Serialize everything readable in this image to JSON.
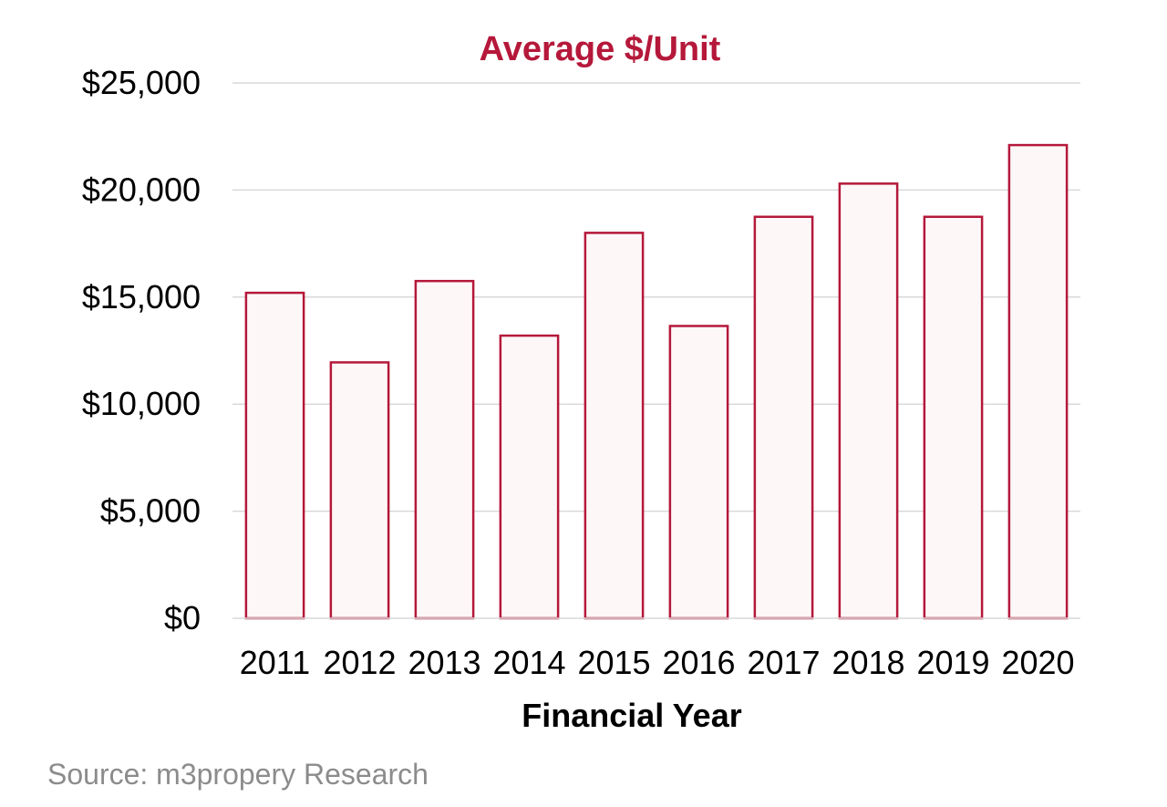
{
  "chart_data": {
    "type": "bar",
    "title": "Average $/Unit",
    "xlabel": "Financial Year",
    "ylabel": "",
    "categories": [
      "2011",
      "2012",
      "2013",
      "2014",
      "2015",
      "2016",
      "2017",
      "2018",
      "2019",
      "2020"
    ],
    "values": [
      15200,
      11950,
      15750,
      13200,
      18000,
      13650,
      18750,
      20300,
      18750,
      22100
    ],
    "ylim": [
      0,
      25000
    ],
    "yticks": [
      0,
      5000,
      10000,
      15000,
      20000,
      25000
    ],
    "ytick_labels": [
      "$0",
      "$5,000",
      "$10,000",
      "$15,000",
      "$20,000",
      "$25,000"
    ],
    "grid": true,
    "legend": "none",
    "source": "Source: m3propery Research",
    "colors": {
      "title": "#b5183a",
      "bar_stroke": "#b5183a",
      "bar_fill": "#fdf7f8",
      "grid": "#d9d9d9",
      "source": "#8c8c8c"
    }
  }
}
